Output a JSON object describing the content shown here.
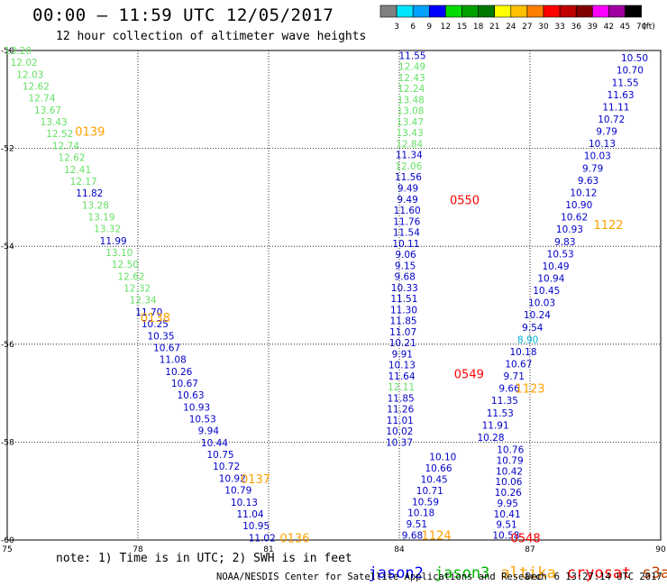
{
  "header": {
    "title": "00:00 — 11:59 UTC 12/05/2017",
    "subtitle": "12 hour collection of altimeter wave heights"
  },
  "color_scale": {
    "unit": "(ft)",
    "bins": [
      {
        "label": "3",
        "color": "#808080"
      },
      {
        "label": "6",
        "color": "#00e5ff"
      },
      {
        "label": "9",
        "color": "#00a0ff"
      },
      {
        "label": "12",
        "color": "#0000ff"
      },
      {
        "label": "15",
        "color": "#00dc00"
      },
      {
        "label": "18",
        "color": "#00a000"
      },
      {
        "label": "21",
        "color": "#007800"
      },
      {
        "label": "24",
        "color": "#ffff00"
      },
      {
        "label": "27",
        "color": "#ffc000"
      },
      {
        "label": "30",
        "color": "#ff8000"
      },
      {
        "label": "33",
        "color": "#ff0000"
      },
      {
        "label": "36",
        "color": "#c00000"
      },
      {
        "label": "39",
        "color": "#800000"
      },
      {
        "label": "42",
        "color": "#ff00ff"
      },
      {
        "label": "45",
        "color": "#a000a0"
      },
      {
        "label": "70",
        "color": "#000000"
      }
    ]
  },
  "map": {
    "lon_range": [
      75,
      90
    ],
    "lat_range": [
      -50,
      -60
    ],
    "x_ticks": [
      "75",
      "78",
      "81",
      "84",
      "87",
      "90"
    ],
    "y_ticks": [
      "-50",
      "-52",
      "-54",
      "-56",
      "-58",
      "-60"
    ],
    "colors": {
      "jason2": "#0000c8",
      "jason3": "#00c800",
      "altika": "#ffa000",
      "cryosat": "#ff0000",
      "s3a": "#ff6000",
      "light_green": "#66e066",
      "cyan": "#00b4d8"
    },
    "tracks": [
      {
        "name": "track-left-1",
        "lon_start": 75.25,
        "lat_start": -50.0,
        "lon_end": 80.85,
        "lat_end": -59.95,
        "values": [
          "13.20",
          "12.02",
          "12.03",
          "12.62",
          "12.74",
          "13.67",
          "13.43",
          "12.52",
          "12.74",
          "12.62",
          "12.41",
          "12.17",
          "11.82",
          "13.28",
          "13.19",
          "13.32",
          "11.99",
          "13.10",
          "12.50",
          "12.62",
          "12.32",
          "12.34",
          "11.70",
          "10.25",
          "10.35",
          "10.67",
          "11.08",
          "10.26",
          "10.67",
          "10.63",
          "10.93",
          "10.53",
          "9.94",
          "10.44",
          "10.75",
          "10.72",
          "10.92",
          "10.79",
          "10.13",
          "11.04",
          "10.95",
          "11.02"
        ],
        "colors": [
          "lg",
          "lg",
          "lg",
          "lg",
          "lg",
          "lg",
          "lg",
          "lg",
          "lg",
          "lg",
          "lg",
          "lg",
          "b",
          "lg",
          "lg",
          "lg",
          "b",
          "lg",
          "lg",
          "lg",
          "lg",
          "lg",
          "b",
          "b",
          "b",
          "b",
          "b",
          "b",
          "b",
          "b",
          "b",
          "b",
          "b",
          "b",
          "b",
          "b",
          "b",
          "b",
          "b",
          "b",
          "b",
          "b"
        ]
      },
      {
        "name": "track-mid-down",
        "lon_start": 84.3,
        "lat_start": -50.1,
        "lon_end": 84.0,
        "lat_end": -58.0,
        "values": [
          "11.55",
          "12.49",
          "12.43",
          "12.24",
          "13.48",
          "13.08",
          "13.47",
          "13.43",
          "12.84",
          "11.34",
          "12.06",
          "11.56",
          "9.49",
          "9.49",
          "11.60",
          "11.76",
          "11.54",
          "10.11",
          "9.06",
          "9.15",
          "9.68",
          "10.33",
          "11.51",
          "11.30",
          "11.85",
          "11.07",
          "10.21",
          "9.91",
          "10.13",
          "11.64",
          "12.11",
          "11.85",
          "11.26",
          "11.01",
          "10.02",
          "10.37"
        ],
        "colors": [
          "b",
          "lg",
          "lg",
          "lg",
          "lg",
          "lg",
          "lg",
          "lg",
          "lg",
          "b",
          "lg",
          "b",
          "b",
          "b",
          "b",
          "b",
          "b",
          "b",
          "b",
          "b",
          "b",
          "b",
          "b",
          "b",
          "b",
          "b",
          "b",
          "b",
          "b",
          "b",
          "lg",
          "b",
          "b",
          "b",
          "b",
          "b"
        ]
      },
      {
        "name": "track-mid-low",
        "lon_start": 85.0,
        "lat_start": -58.3,
        "lon_end": 84.3,
        "lat_end": -59.9,
        "values": [
          "10.10",
          "10.66",
          "10.45",
          "10.71",
          "10.59",
          "10.18",
          "9.51",
          "9.68"
        ],
        "colors": [
          "b",
          "b",
          "b",
          "b",
          "b",
          "b",
          "b",
          "b"
        ]
      },
      {
        "name": "track-right-up",
        "lon_start": 89.4,
        "lat_start": -50.15,
        "lon_end": 86.1,
        "lat_end": -57.9,
        "values": [
          "10.50",
          "10.70",
          "11.55",
          "11.63",
          "11.11",
          "10.72",
          "9.79",
          "10.13",
          "10.03",
          "9.79",
          "9.63",
          "10.12",
          "10.90",
          "10.62",
          "10.93",
          "9.83",
          "10.53",
          "10.49",
          "10.94",
          "10.45",
          "10.03",
          "10.24",
          "9.54",
          "8.90",
          "10.18",
          "10.67",
          "9.71",
          "9.66",
          "11.35",
          "11.53",
          "11.91",
          "10.28"
        ],
        "colors": [
          "b",
          "b",
          "b",
          "b",
          "b",
          "b",
          "b",
          "b",
          "b",
          "b",
          "b",
          "b",
          "b",
          "b",
          "b",
          "b",
          "b",
          "b",
          "b",
          "b",
          "b",
          "b",
          "b",
          "c",
          "b",
          "b",
          "b",
          "b",
          "b",
          "b",
          "b",
          "b"
        ]
      },
      {
        "name": "track-right-low",
        "lon_start": 86.55,
        "lat_start": -58.15,
        "lon_end": 86.45,
        "lat_end": -59.9,
        "values": [
          "10.76",
          "10.79",
          "10.42",
          "10.06",
          "10.26",
          "9.95",
          "10.41",
          "9.51",
          "10.58"
        ],
        "colors": [
          "b",
          "b",
          "b",
          "b",
          "b",
          "b",
          "b",
          "b",
          "b"
        ]
      }
    ],
    "time_labels": [
      {
        "text": "0139",
        "lon": 76.9,
        "lat": -51.65,
        "sat": "altika"
      },
      {
        "text": "0138",
        "lon": 78.4,
        "lat": -55.45,
        "sat": "altika"
      },
      {
        "text": "0137",
        "lon": 80.7,
        "lat": -58.75,
        "sat": "altika"
      },
      {
        "text": "0136",
        "lon": 81.6,
        "lat": -59.95,
        "sat": "altika"
      },
      {
        "text": "0550",
        "lon": 85.5,
        "lat": -53.05,
        "sat": "cryosat"
      },
      {
        "text": "1122",
        "lon": 88.8,
        "lat": -53.55,
        "sat": "altika"
      },
      {
        "text": "0549",
        "lon": 85.6,
        "lat": -56.6,
        "sat": "cryosat"
      },
      {
        "text": "1123",
        "lon": 87.0,
        "lat": -56.9,
        "sat": "altika"
      },
      {
        "text": "1124",
        "lon": 84.85,
        "lat": -59.9,
        "sat": "altika"
      },
      {
        "text": "0548",
        "lon": 86.9,
        "lat": -59.95,
        "sat": "cryosat"
      }
    ]
  },
  "footer": {
    "note": "note: 1) Time is in UTC; 2) SWH is in feet",
    "legend": [
      {
        "label": "jason2",
        "color": "#0000ff"
      },
      {
        "label": "jason3",
        "color": "#00b400"
      },
      {
        "label": "altika",
        "color": "#ffa000"
      },
      {
        "label": "cryosat",
        "color": "#ff0000"
      },
      {
        "label": "s3a",
        "color": "#c04000"
      }
    ],
    "credit": "NOAA/NESDIS Center for Satellite Applications and Research",
    "timestamp": "Dec  6 13:27:14 UTC 2017"
  }
}
